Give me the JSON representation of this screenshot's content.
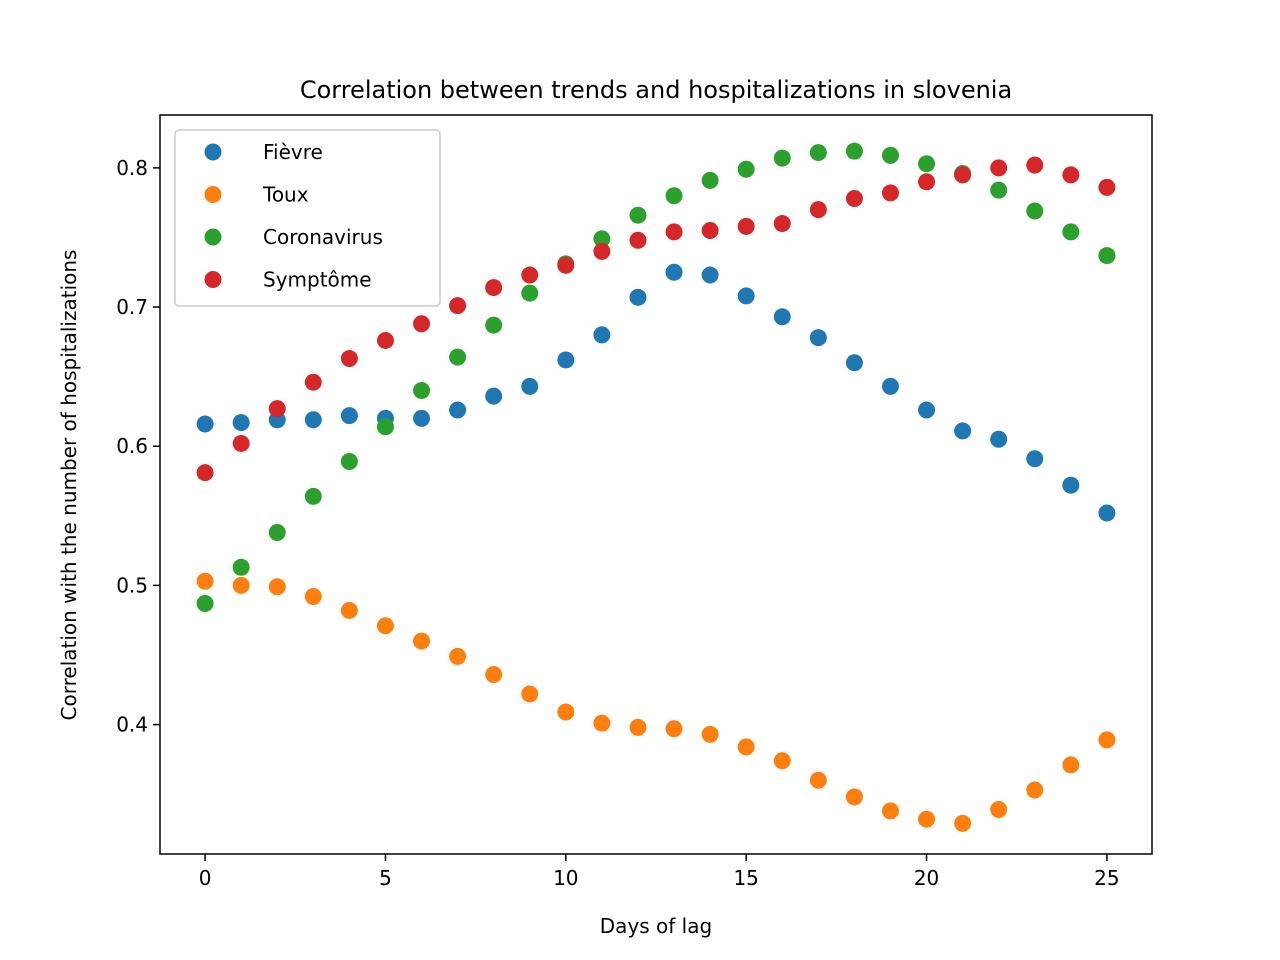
{
  "chart_data": {
    "type": "scatter",
    "title": "Correlation between trends and hospitalizations in slovenia",
    "xlabel": "Days of lag",
    "ylabel": "Correlation with the number of hospitalizations",
    "xlim": [
      -1.25,
      26.25
    ],
    "ylim": [
      0.307,
      0.838
    ],
    "xticks": [
      0,
      5,
      10,
      15,
      20,
      25
    ],
    "yticks": [
      0.4,
      0.5,
      0.6,
      0.7,
      0.8
    ],
    "xtick_labels": [
      "0",
      "5",
      "10",
      "15",
      "20",
      "25"
    ],
    "ytick_labels": [
      "0.4",
      "0.5",
      "0.6",
      "0.7",
      "0.8"
    ],
    "grid": false,
    "legend_position": "upper-left",
    "x": [
      0,
      1,
      2,
      3,
      4,
      5,
      6,
      7,
      8,
      9,
      10,
      11,
      12,
      13,
      14,
      15,
      16,
      17,
      18,
      19,
      20,
      21,
      22,
      23,
      24,
      25
    ],
    "series": [
      {
        "name": "Fièvre",
        "color": "#1f77b4",
        "values": [
          0.616,
          0.617,
          0.619,
          0.619,
          0.622,
          0.62,
          0.62,
          0.626,
          0.636,
          0.643,
          0.662,
          0.68,
          0.707,
          0.725,
          0.723,
          0.708,
          0.693,
          0.678,
          0.66,
          0.643,
          0.626,
          0.611,
          0.605,
          0.591,
          0.572,
          0.552
        ]
      },
      {
        "name": "Toux",
        "color": "#ff7f0e",
        "values": [
          0.503,
          0.5,
          0.499,
          0.492,
          0.482,
          0.471,
          0.46,
          0.449,
          0.436,
          0.422,
          0.409,
          0.401,
          0.398,
          0.397,
          0.393,
          0.384,
          0.374,
          0.36,
          0.348,
          0.338,
          0.332,
          0.329,
          0.339,
          0.353,
          0.371,
          0.389
        ]
      },
      {
        "name": "Coronavirus",
        "color": "#2ca02c",
        "values": [
          0.487,
          0.513,
          0.538,
          0.564,
          0.589,
          0.614,
          0.64,
          0.664,
          0.687,
          0.71,
          0.731,
          0.749,
          0.766,
          0.78,
          0.791,
          0.799,
          0.807,
          0.811,
          0.812,
          0.809,
          0.803,
          0.796,
          0.784,
          0.769,
          0.754,
          0.737
        ]
      },
      {
        "name": "Symptôme",
        "color": "#d62728",
        "values": [
          0.581,
          0.602,
          0.627,
          0.646,
          0.663,
          0.676,
          0.688,
          0.701,
          0.714,
          0.723,
          0.73,
          0.74,
          0.748,
          0.754,
          0.755,
          0.758,
          0.76,
          0.77,
          0.778,
          0.782,
          0.79,
          0.795,
          0.8,
          0.802,
          0.795,
          0.786
        ]
      }
    ]
  }
}
